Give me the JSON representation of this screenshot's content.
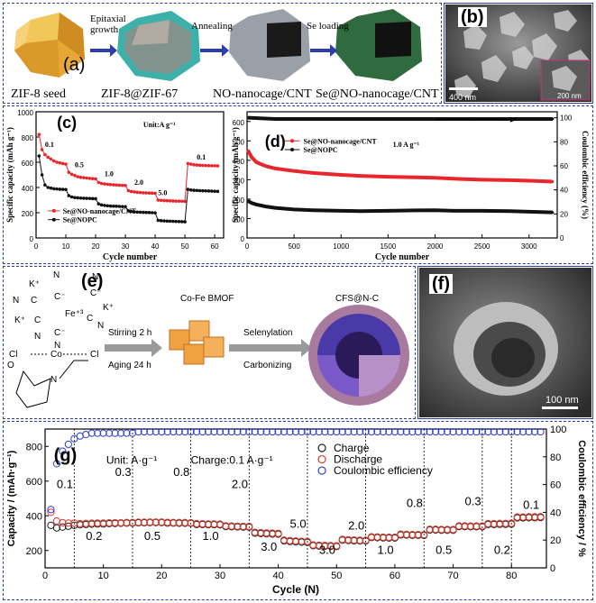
{
  "panel_a": {
    "label": "(a)",
    "stages": [
      "ZIF-8 seed",
      "ZIF-8@ZIF-67",
      "NO-nanocage/CNT",
      "Se@NO-nanocage/CNT"
    ],
    "arrows": [
      "Epitaxial growth",
      "Annealing",
      "Se loading"
    ],
    "colors": {
      "seed": "#e6a735",
      "zif67": "#3cb0a9",
      "cnt": "#9aa0a8",
      "se": "#2f6b3e"
    }
  },
  "panel_b": {
    "label": "(b)",
    "scale_main": "400 nm",
    "scale_inset": "200 nm"
  },
  "panel_f": {
    "label": "(f)",
    "scale": "100 nm"
  },
  "panel_e": {
    "label": "(e)",
    "precursors": [
      "K⁺",
      "N",
      "C",
      "C⁻",
      "Fe⁺³",
      "Co",
      "Cl",
      "N",
      "O"
    ],
    "steps": [
      "Stirring 2 h",
      "Aging 24 h",
      "Selenylation",
      "Carbonizing"
    ],
    "mof": "Co-Fe BMOF",
    "product": "CFS@N-C"
  },
  "chart_data": [
    {
      "id": "c",
      "type": "line",
      "label": "(c)",
      "xlabel": "Cycle number",
      "ylabel": "Specific capacity (mAh g⁻¹)",
      "xlim": [
        0,
        63
      ],
      "ylim": [
        0,
        1000
      ],
      "xticks": [
        0,
        10,
        20,
        30,
        40,
        50,
        60
      ],
      "yticks": [
        0,
        200,
        400,
        600,
        800,
        1000
      ],
      "unit_note": "Unit:A g⁻¹",
      "rate_labels": [
        "0.1",
        "0.5",
        "1.0",
        "2.0",
        "5.0",
        "0.1"
      ],
      "series": [
        {
          "name": "Se@NO-nanocage/CNT",
          "color": "#e8262b",
          "x": [
            1,
            2,
            3,
            4,
            5,
            6,
            7,
            8,
            9,
            10,
            11,
            12,
            13,
            14,
            15,
            16,
            17,
            18,
            19,
            20,
            21,
            22,
            23,
            24,
            25,
            26,
            27,
            28,
            29,
            30,
            31,
            32,
            33,
            34,
            35,
            36,
            37,
            38,
            39,
            40,
            41,
            42,
            43,
            44,
            45,
            46,
            47,
            48,
            49,
            50,
            51,
            52,
            53,
            54,
            55,
            56,
            57,
            58,
            59,
            60,
            61
          ],
          "y": [
            820,
            700,
            660,
            640,
            625,
            610,
            600,
            595,
            590,
            585,
            520,
            505,
            495,
            485,
            480,
            478,
            475,
            472,
            470,
            468,
            440,
            432,
            428,
            425,
            423,
            421,
            420,
            418,
            417,
            416,
            375,
            368,
            365,
            362,
            360,
            358,
            357,
            356,
            355,
            354,
            300,
            298,
            296,
            295,
            294,
            293,
            292,
            292,
            291,
            290,
            590,
            585,
            580,
            578,
            576,
            575,
            574,
            573,
            572,
            572,
            571
          ]
        },
        {
          "name": "Se@NOPC",
          "color": "#111111",
          "x": [
            1,
            2,
            3,
            4,
            5,
            6,
            7,
            8,
            9,
            10,
            11,
            12,
            13,
            14,
            15,
            16,
            17,
            18,
            19,
            20,
            21,
            22,
            23,
            24,
            25,
            26,
            27,
            28,
            29,
            30,
            31,
            32,
            33,
            34,
            35,
            36,
            37,
            38,
            39,
            40,
            41,
            42,
            43,
            44,
            45,
            46,
            47,
            48,
            49,
            50,
            51,
            52,
            53,
            54,
            55,
            56,
            57,
            58,
            59,
            60,
            61
          ],
          "y": [
            650,
            500,
            420,
            400,
            395,
            390,
            388,
            386,
            385,
            384,
            335,
            325,
            320,
            318,
            316,
            315,
            314,
            313,
            312,
            311,
            270,
            262,
            258,
            255,
            253,
            252,
            251,
            250,
            249,
            248,
            215,
            210,
            207,
            205,
            204,
            203,
            202,
            201,
            200,
            199,
            140,
            137,
            135,
            134,
            133,
            132,
            131,
            130,
            129,
            128,
            385,
            380,
            378,
            376,
            375,
            374,
            373,
            372,
            371,
            370,
            369
          ]
        }
      ]
    },
    {
      "id": "d",
      "type": "scatter",
      "label": "(d)",
      "xlabel": "Cycle number",
      "ylabel": "Specific capacity (mAh g⁻¹)",
      "y2label": "Coulombic efficiency (%)",
      "xlim": [
        0,
        3300
      ],
      "ylim": [
        0,
        650
      ],
      "y2lim": [
        0,
        105
      ],
      "xticks": [
        0,
        500,
        1000,
        1500,
        2000,
        2500,
        3000
      ],
      "yticks": [
        0,
        100,
        200,
        300,
        400,
        500,
        600
      ],
      "y2ticks": [
        0,
        20,
        40,
        60,
        80,
        100
      ],
      "rate_note": "1.0 A g⁻¹",
      "series": [
        {
          "name": "Se@NO-nanocage/CNT",
          "color": "#e8262b",
          "x": [
            10,
            50,
            100,
            200,
            300,
            500,
            700,
            1000,
            1200,
            1500,
            1800,
            2000,
            2200,
            2500,
            2800,
            3000,
            3250
          ],
          "y": [
            450,
            415,
            390,
            370,
            358,
            345,
            335,
            325,
            320,
            315,
            312,
            310,
            305,
            300,
            298,
            295,
            290
          ]
        },
        {
          "name": "Se@NOPC",
          "color": "#111111",
          "x": [
            10,
            50,
            100,
            200,
            300,
            500,
            700,
            1000,
            1200,
            1500,
            1800,
            2000,
            2200,
            2500,
            2800,
            3000,
            3250
          ],
          "y": [
            190,
            180,
            172,
            162,
            155,
            147,
            143,
            140,
            138,
            140,
            142,
            143,
            140,
            140,
            138,
            135,
            132
          ]
        },
        {
          "name": "Coulombic efficiency",
          "color": "#111111",
          "x": [
            10,
            300,
            600,
            900,
            1200,
            1500,
            1800,
            2100,
            2400,
            2700,
            3000,
            3250
          ],
          "y": [
            100,
            99,
            99,
            99,
            99,
            99,
            99,
            99,
            99,
            99,
            99,
            99
          ]
        }
      ]
    },
    {
      "id": "g",
      "type": "scatter",
      "label": "(g)",
      "xlabel": "Cycle (N)",
      "ylabel": "Capacity / (mAh·g⁻¹)",
      "y2label": "Coulombic efficiency / %",
      "xlim": [
        0,
        86
      ],
      "ylim": [
        100,
        900
      ],
      "y2lim": [
        0,
        100
      ],
      "xticks": [
        0,
        10,
        20,
        30,
        40,
        50,
        60,
        70,
        80
      ],
      "yticks": [
        200,
        400,
        600,
        800
      ],
      "y2ticks": [
        0,
        20,
        40,
        60,
        80,
        100
      ],
      "unit_note": "Unit: A·g⁻¹",
      "charge_note": "Charge:0.1 A·g⁻¹",
      "rate_labels": [
        "0.1",
        "0.2",
        "0.3",
        "0.5",
        "0.8",
        "1.0",
        "2.0",
        "3.0",
        "5.0",
        "3.0",
        "2.0",
        "1.0",
        "0.8",
        "0.5",
        "0.3",
        "0.2",
        "0.1"
      ],
      "legend": [
        "Charge",
        "Discharge",
        "Coulombic efficiency"
      ],
      "series": [
        {
          "name": "Charge",
          "color": "#222222",
          "x": [
            1,
            2,
            3,
            4,
            5,
            6,
            7,
            8,
            9,
            10,
            11,
            12,
            13,
            14,
            15,
            16,
            17,
            18,
            19,
            20,
            21,
            22,
            23,
            24,
            25,
            26,
            27,
            28,
            29,
            30,
            31,
            32,
            33,
            34,
            35,
            36,
            37,
            38,
            39,
            40,
            41,
            42,
            43,
            44,
            45,
            46,
            47,
            48,
            49,
            50,
            51,
            52,
            53,
            54,
            55,
            56,
            57,
            58,
            59,
            60,
            61,
            62,
            63,
            64,
            65,
            66,
            67,
            68,
            69,
            70,
            71,
            72,
            73,
            74,
            75,
            76,
            77,
            78,
            79,
            80,
            81,
            82,
            83,
            84,
            85
          ],
          "y": [
            345,
            330,
            335,
            340,
            345,
            348,
            350,
            352,
            353,
            353,
            355,
            356,
            357,
            358,
            358,
            360,
            360,
            361,
            361,
            361,
            358,
            358,
            357,
            357,
            357,
            350,
            350,
            349,
            349,
            348,
            338,
            337,
            336,
            335,
            335,
            300,
            298,
            296,
            295,
            294,
            255,
            252,
            250,
            248,
            247,
            228,
            226,
            225,
            224,
            223,
            260,
            258,
            256,
            255,
            255,
            275,
            274,
            273,
            272,
            272,
            290,
            289,
            288,
            288,
            287,
            318,
            318,
            317,
            317,
            317,
            338,
            338,
            337,
            337,
            337,
            350,
            350,
            351,
            351,
            352,
            388,
            388,
            389,
            389,
            390
          ]
        },
        {
          "name": "Discharge",
          "color": "#e03a2a",
          "x": [
            1,
            2,
            3,
            4,
            5,
            6,
            7,
            8,
            9,
            10,
            11,
            12,
            13,
            14,
            15,
            16,
            17,
            18,
            19,
            20,
            21,
            22,
            23,
            24,
            25,
            26,
            27,
            28,
            29,
            30,
            31,
            32,
            33,
            34,
            35,
            36,
            37,
            38,
            39,
            40,
            41,
            42,
            43,
            44,
            45,
            46,
            47,
            48,
            49,
            50,
            51,
            52,
            53,
            54,
            55,
            56,
            57,
            58,
            59,
            60,
            61,
            62,
            63,
            64,
            65,
            66,
            67,
            68,
            69,
            70,
            71,
            72,
            73,
            74,
            75,
            76,
            77,
            78,
            79,
            80,
            81,
            82,
            83,
            84,
            85
          ],
          "y": [
            420,
            370,
            360,
            358,
            358,
            355,
            356,
            357,
            358,
            358,
            359,
            360,
            360,
            361,
            361,
            363,
            363,
            364,
            364,
            364,
            362,
            361,
            361,
            361,
            360,
            355,
            354,
            353,
            353,
            352,
            342,
            341,
            340,
            339,
            339,
            305,
            303,
            301,
            300,
            299,
            260,
            257,
            255,
            253,
            252,
            232,
            230,
            229,
            228,
            227,
            264,
            262,
            260,
            259,
            259,
            279,
            278,
            277,
            276,
            276,
            294,
            293,
            292,
            292,
            291,
            322,
            322,
            321,
            321,
            321,
            342,
            342,
            341,
            341,
            341,
            355,
            355,
            356,
            356,
            357,
            393,
            393,
            394,
            394,
            395
          ]
        },
        {
          "name": "Coulombic efficiency",
          "color": "#2e3fd0",
          "x": [
            1,
            2,
            3,
            4,
            5,
            6,
            7,
            8,
            9,
            10,
            11,
            12,
            13,
            14,
            15,
            16,
            17,
            18,
            19,
            20,
            21,
            22,
            23,
            24,
            25,
            26,
            27,
            28,
            29,
            30,
            31,
            32,
            33,
            34,
            35,
            36,
            37,
            38,
            39,
            40,
            41,
            42,
            43,
            44,
            45,
            46,
            47,
            48,
            49,
            50,
            51,
            52,
            53,
            54,
            55,
            56,
            57,
            58,
            59,
            60,
            61,
            62,
            63,
            64,
            65,
            66,
            67,
            68,
            69,
            70,
            71,
            72,
            73,
            74,
            75,
            76,
            77,
            78,
            79,
            80,
            81,
            82,
            83,
            84,
            85
          ],
          "y": [
            42,
            75,
            84,
            89,
            93,
            95,
            96,
            97,
            97,
            97,
            97,
            97,
            97,
            97,
            97,
            98,
            98,
            98,
            98,
            98,
            98,
            98,
            98,
            98,
            98,
            98,
            98,
            98,
            98,
            98,
            98,
            98,
            98,
            98,
            98,
            98,
            98,
            98,
            98,
            98,
            98,
            98,
            98,
            98,
            98,
            98,
            98,
            98,
            98,
            98,
            98,
            98,
            98,
            98,
            98,
            98,
            98,
            98,
            98,
            98,
            98,
            98,
            98,
            98,
            98,
            98,
            98,
            98,
            98,
            98,
            98,
            98,
            98,
            98,
            98,
            98,
            98,
            98,
            98,
            98,
            98,
            98,
            98,
            98,
            98
          ]
        }
      ]
    }
  ]
}
